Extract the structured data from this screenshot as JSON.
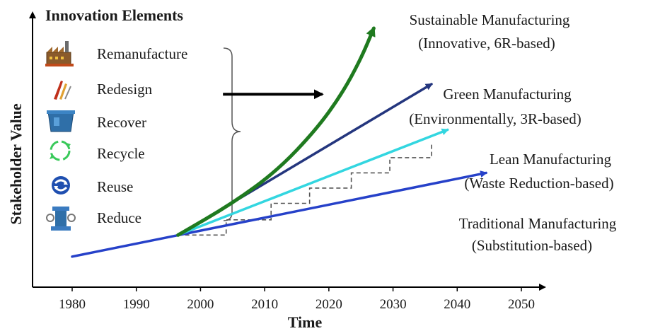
{
  "chart_data": {
    "type": "line",
    "xlabel": "Time",
    "ylabel": "Stakeholder Value",
    "x_ticks": [
      1980,
      1990,
      2000,
      2010,
      2020,
      2030,
      2040,
      2050
    ],
    "xlim": [
      1977,
      2053
    ],
    "ylim": [
      0,
      100
    ],
    "grid": false,
    "legend": {
      "title": "Innovation Elements",
      "placement": "top-left",
      "items": [
        {
          "label": "Remanufacture",
          "icon": "factory-icon"
        },
        {
          "label": "Redesign",
          "icon": "drafting-tools-icon"
        },
        {
          "label": "Recover",
          "icon": "recovery-bin-icon"
        },
        {
          "label": "Recycle",
          "icon": "recycle-arrows-icon"
        },
        {
          "label": "Reuse",
          "icon": "reuse-arrows-icon"
        },
        {
          "label": "Reduce",
          "icon": "reduce-press-icon"
        }
      ]
    },
    "series": [
      {
        "label_lines": [
          "Traditional Manufacturing",
          "(Substitution-based)"
        ],
        "color": "#2641c9",
        "style": "straight",
        "points": [
          [
            1980,
            12
          ],
          [
            2044.5,
            45
          ]
        ]
      },
      {
        "label_lines": [
          "Lean Manufacturing",
          "(Waste Reduction-based)"
        ],
        "color": "#33d6e0",
        "style": "straight",
        "points": [
          [
            1996.5,
            20.5
          ],
          [
            2038.5,
            62
          ]
        ]
      },
      {
        "label_lines": [
          "Green Manufacturing",
          "(Environmentally, 3R-based)"
        ],
        "color": "#24367e",
        "style": "straight",
        "points": [
          [
            1996.5,
            20.5
          ],
          [
            2036,
            80
          ]
        ]
      },
      {
        "label_lines": [
          "Sustainable Manufacturing",
          "(Innovative, 6R-based)"
        ],
        "color": "#1f7a1f",
        "style": "curve",
        "points": [
          [
            1996.5,
            20.5
          ],
          [
            2005,
            33
          ],
          [
            2012,
            46
          ],
          [
            2018,
            62
          ],
          [
            2022,
            76
          ],
          [
            2025,
            90
          ],
          [
            2027,
            102
          ]
        ]
      }
    ],
    "step_path": {
      "color": "#555555",
      "style": "dashed",
      "points": [
        [
          1996.5,
          20.5
        ],
        [
          2004,
          20.5
        ],
        [
          2004,
          26.5
        ],
        [
          2011,
          26.5
        ],
        [
          2011,
          33
        ],
        [
          2017,
          33
        ],
        [
          2017,
          39
        ],
        [
          2023.5,
          39
        ],
        [
          2023.5,
          45
        ],
        [
          2029.5,
          45
        ],
        [
          2029.5,
          51
        ],
        [
          2036,
          51
        ],
        [
          2036,
          57
        ]
      ]
    },
    "bracket_arrow": {
      "color": "#000000",
      "from": [
        2003.5,
        76
      ],
      "to": [
        2019,
        76
      ]
    }
  }
}
